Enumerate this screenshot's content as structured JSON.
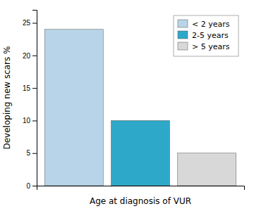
{
  "chart_data": {
    "type": "bar",
    "xlabel": "Age at diagnosis of VUR",
    "ylabel": "Developing new scars %",
    "categories": [
      "< 2 years",
      "2-5 years",
      "> 5 years"
    ],
    "values": [
      24,
      10,
      5
    ],
    "colors": [
      "#b8d4e8",
      "#2ea8c8",
      "#d8d8d8"
    ],
    "ylim": [
      0,
      27
    ],
    "yticks": [
      0,
      5,
      10,
      15,
      20,
      25
    ],
    "grid": false,
    "legend": "upper right",
    "tick_labels": "y"
  }
}
